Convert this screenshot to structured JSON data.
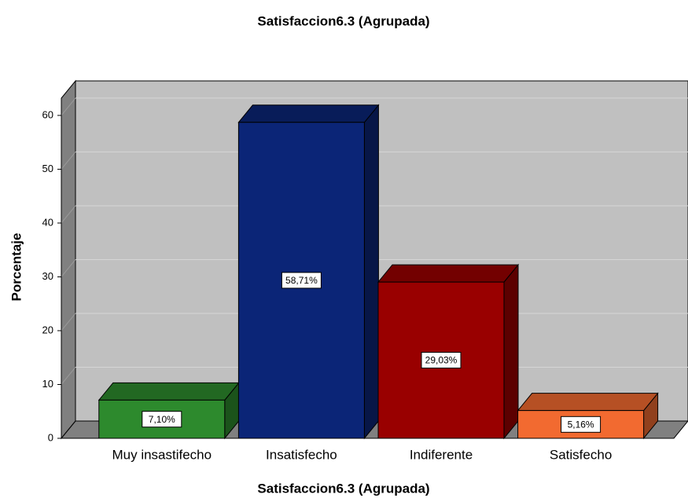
{
  "chart_data": {
    "type": "bar3d",
    "title": "Satisfaccion6.3 (Agrupada)",
    "x_label": "Satisfaccion6.3 (Agrupada)",
    "y_label": "Porcentaje",
    "categories": [
      "Muy insastifecho",
      "Insatisfecho",
      "Indiferente",
      "Satisfecho"
    ],
    "values": [
      7.1,
      58.71,
      29.03,
      5.16
    ],
    "value_labels": [
      "7,10%",
      "58,71%",
      "29,03%",
      "5,16%"
    ],
    "colors": [
      "#2d8a2d",
      "#0b2577",
      "#990000",
      "#f26a30"
    ],
    "ylim": [
      0,
      63.2
    ],
    "yticks": [
      0,
      10,
      20,
      30,
      40,
      50,
      60
    ],
    "grid": true
  }
}
